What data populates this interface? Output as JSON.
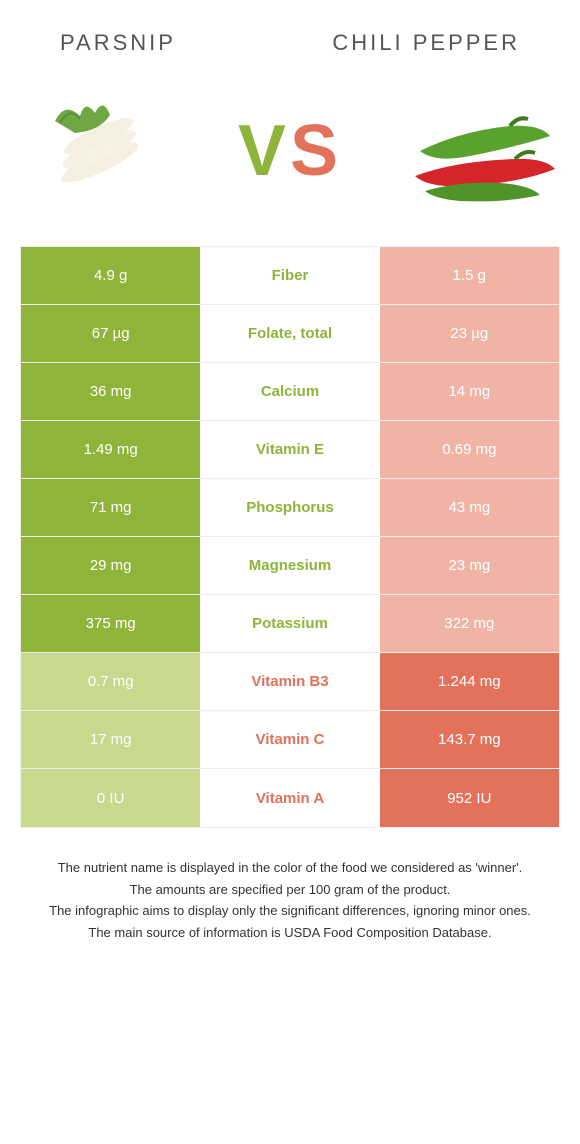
{
  "colors": {
    "left_winner": "#8fb43a",
    "left_loser": "#c8d98e",
    "right_winner": "#e2725b",
    "right_loser": "#f0b4a5",
    "left_text_mid": "#8fb43a",
    "right_text_mid": "#e2725b",
    "title_color": "#555555",
    "body_text": "#333333",
    "background": "#ffffff",
    "border": "#eeeeee"
  },
  "typography": {
    "title_fontsize": 22,
    "title_letterspacing": 3,
    "vs_fontsize": 72,
    "cell_fontsize": 15,
    "footer_fontsize": 13
  },
  "header": {
    "left_title": "Parsnip",
    "right_title": "Chili pepper"
  },
  "vs": {
    "v": "V",
    "s": "S"
  },
  "rows": [
    {
      "label": "Fiber",
      "left": "4.9 g",
      "right": "1.5 g",
      "winner": "left"
    },
    {
      "label": "Folate, total",
      "left": "67 µg",
      "right": "23 µg",
      "winner": "left"
    },
    {
      "label": "Calcium",
      "left": "36 mg",
      "right": "14 mg",
      "winner": "left"
    },
    {
      "label": "Vitamin E",
      "left": "1.49 mg",
      "right": "0.69 mg",
      "winner": "left"
    },
    {
      "label": "Phosphorus",
      "left": "71 mg",
      "right": "43 mg",
      "winner": "left"
    },
    {
      "label": "Magnesium",
      "left": "29 mg",
      "right": "23 mg",
      "winner": "left"
    },
    {
      "label": "Potassium",
      "left": "375 mg",
      "right": "322 mg",
      "winner": "left"
    },
    {
      "label": "Vitamin B3",
      "left": "0.7 mg",
      "right": "1.244 mg",
      "winner": "right"
    },
    {
      "label": "Vitamin C",
      "left": "17 mg",
      "right": "143.7 mg",
      "winner": "right"
    },
    {
      "label": "Vitamin A",
      "left": "0 IU",
      "right": "952 IU",
      "winner": "right"
    }
  ],
  "footer": {
    "l1": "The nutrient name is displayed in the color of the food we considered as 'winner'.",
    "l2": "The amounts are specified per 100 gram of the product.",
    "l3": "The infographic aims to display only the significant differences, ignoring minor ones.",
    "l4": "The main source of information is USDA Food Composition Database."
  }
}
